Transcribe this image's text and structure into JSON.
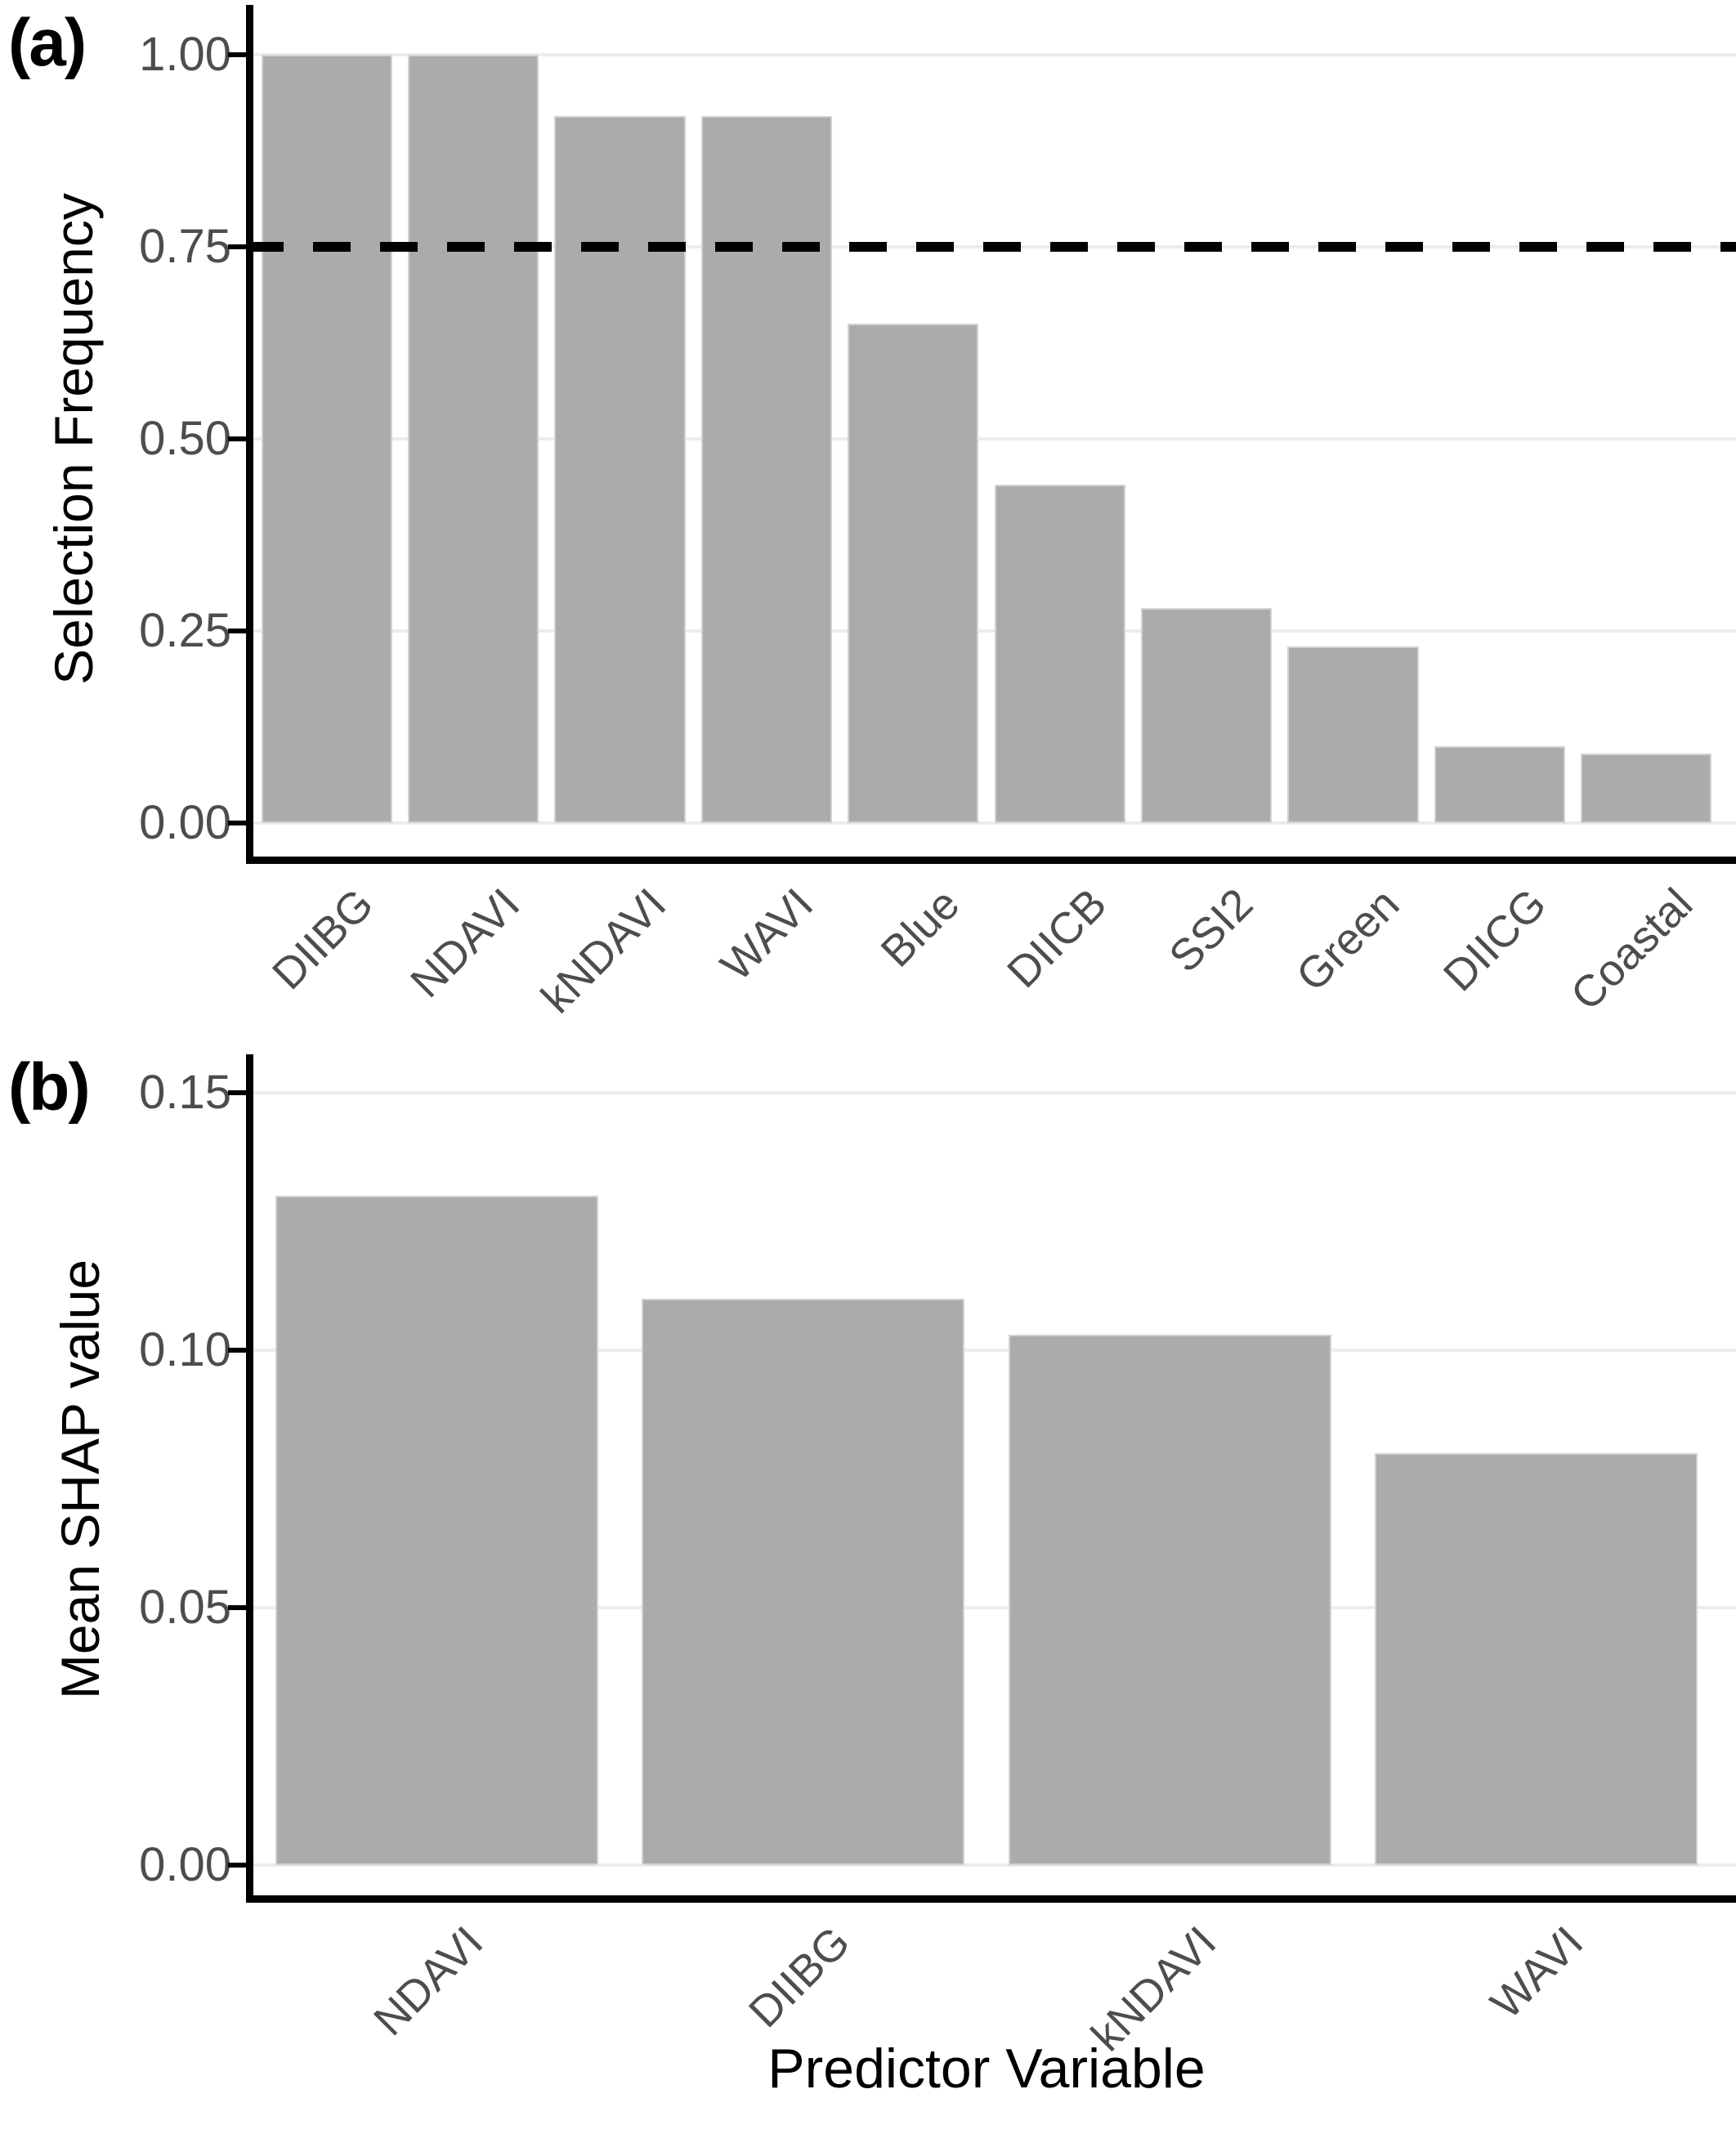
{
  "figure": {
    "background": "#ffffff",
    "bar_fill": "#ababab",
    "bar_border": "#d2d2d2",
    "gridline_color": "#ececec",
    "axis_color": "#000000",
    "tick_text_color": "#4d4d4d"
  },
  "chart_data": [
    {
      "type": "bar",
      "tag": "(a)",
      "title": "",
      "ylabel": "Selection Frequency",
      "xlabel": "",
      "categories": [
        "DIIBG",
        "NDAVI",
        "kNDAVI",
        "WAVI",
        "Blue",
        "DIICB",
        "SSI2",
        "Green",
        "DIICG",
        "Coastal"
      ],
      "values": [
        1.0,
        1.0,
        0.92,
        0.92,
        0.65,
        0.44,
        0.28,
        0.23,
        0.1,
        0.09
      ],
      "yticks": [
        0.0,
        0.25,
        0.5,
        0.75,
        1.0
      ],
      "ytick_labels": [
        "0.00",
        "0.25",
        "0.50",
        "0.75",
        "1.00"
      ],
      "ylim": [
        0,
        1.0
      ],
      "grid": "horizontal",
      "legend": "none",
      "bar_color": "#ababab",
      "x_label_angle": 45,
      "threshold_line": {
        "y": 0.75,
        "style": "dashed",
        "color": "#000000"
      }
    },
    {
      "type": "bar",
      "tag": "(b)",
      "title": "",
      "ylabel": "Mean SHAP value",
      "xlabel": "Predictor Variable",
      "categories": [
        "NDAVI",
        "DIIBG",
        "kNDAVI",
        "WAVI"
      ],
      "values": [
        0.13,
        0.11,
        0.103,
        0.08
      ],
      "yticks": [
        0.0,
        0.05,
        0.1,
        0.15
      ],
      "ytick_labels": [
        "0.00",
        "0.05",
        "0.10",
        "0.15"
      ],
      "ylim": [
        0,
        0.155
      ],
      "grid": "horizontal",
      "legend": "none",
      "bar_color": "#ababab",
      "x_label_angle": 45
    }
  ]
}
